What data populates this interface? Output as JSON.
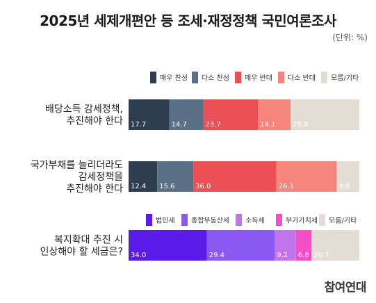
{
  "title": "2025년 세제개편안 등 조세·재정정책 국민여론조사",
  "unit": "(단위: %)",
  "brand": "참여연대",
  "chart_data": [
    {
      "type": "bar",
      "orientation": "horizontal-stacked",
      "legend": [
        "매우 찬성",
        "다소 찬성",
        "매우 반대",
        "다소 반대",
        "모름/기타"
      ],
      "colors": [
        "#2e3d4f",
        "#5a7086",
        "#ec4f54",
        "#f6867d",
        "#e3ddd3"
      ],
      "rows": [
        {
          "label": [
            "배당소득 감세정책,",
            "추진해야 한다"
          ],
          "values": [
            17.7,
            14.7,
            23.7,
            14.1,
            29.8
          ]
        },
        {
          "label": [
            "국가부채를 늘리더라도",
            "감세정책을",
            "추진해야 한다"
          ],
          "values": [
            12.4,
            15.6,
            36.0,
            26.1,
            9.8
          ]
        }
      ]
    },
    {
      "type": "bar",
      "orientation": "horizontal-stacked",
      "legend": [
        "법인세",
        "종합부동산세",
        "소득세",
        "부가가치세",
        "모름/기타"
      ],
      "colors": [
        "#5a1be8",
        "#8c58f4",
        "#c274ec",
        "#f54fc8",
        "#e3ddd3"
      ],
      "rows": [
        {
          "label": [
            "복지확대 추진 시",
            "인상해야 할 세금은?"
          ],
          "values": [
            34.0,
            29.4,
            9.2,
            6.8,
            20.7
          ]
        }
      ]
    }
  ]
}
